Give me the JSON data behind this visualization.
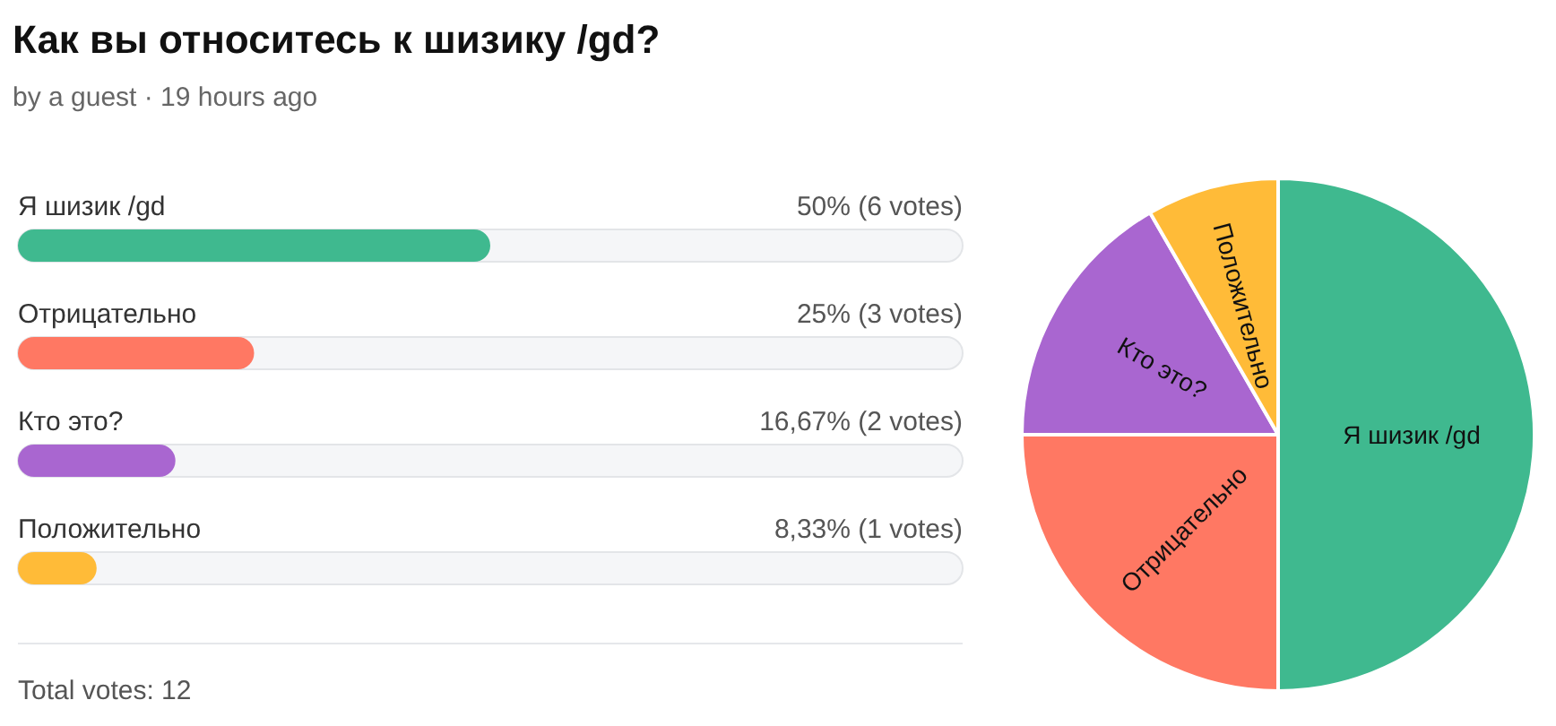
{
  "chart_data": [
    {
      "type": "bar",
      "title": "Как вы относитесь к шизику /gd?",
      "subtitle": "by a guest · 19 hours ago",
      "orientation": "horizontal",
      "categories": [
        "Я шизик /gd",
        "Отрицательно",
        "Кто это?",
        "Положительно"
      ],
      "values": [
        50,
        25,
        16.67,
        8.33
      ],
      "colors": [
        "#3fb98f",
        "#ff7863",
        "#a966d0",
        "#ffbb38"
      ],
      "xlim": [
        0,
        100
      ],
      "value_labels": [
        "50% (6 votes)",
        "25% (3 votes)",
        "16,67% (2 votes)",
        "8,33% (1 votes)"
      ],
      "tick_labels": "y",
      "annotations": [
        "Total votes: 12"
      ]
    },
    {
      "type": "pie",
      "categories": [
        "Я шизик /gd",
        "Отрицательно",
        "Кто это?",
        "Положительно"
      ],
      "values": [
        50,
        25,
        16.67,
        8.33
      ],
      "colors": [
        "#3fb98f",
        "#ff7863",
        "#a966d0",
        "#ffbb38"
      ]
    }
  ]
}
